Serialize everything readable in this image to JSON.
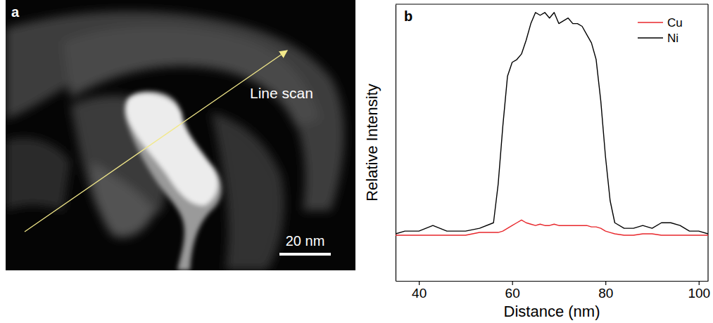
{
  "chart_data": [
    {
      "type": "image",
      "panel": "a",
      "annotations": [
        "Line scan"
      ],
      "scale_bar": "20 nm"
    },
    {
      "type": "line",
      "panel": "b",
      "x_label": "Distance (nm)",
      "y_label": "Relative Intensity",
      "x": [
        35,
        37,
        40,
        43,
        46,
        50,
        53,
        56,
        57,
        58,
        59,
        60,
        61,
        62,
        63,
        64,
        65,
        66,
        67,
        68,
        69,
        70,
        71,
        72,
        73,
        74,
        75,
        76,
        77,
        78,
        79,
        80,
        81,
        82,
        84,
        86,
        88,
        90,
        92,
        94,
        96,
        98,
        100,
        102
      ],
      "series": [
        {
          "name": "Cu",
          "color": "#e8262b",
          "values": [
            0.165,
            0.165,
            0.165,
            0.165,
            0.165,
            0.165,
            0.175,
            0.175,
            0.175,
            0.18,
            0.19,
            0.2,
            0.21,
            0.22,
            0.21,
            0.205,
            0.2,
            0.205,
            0.2,
            0.2,
            0.205,
            0.2,
            0.2,
            0.2,
            0.2,
            0.2,
            0.2,
            0.2,
            0.195,
            0.195,
            0.19,
            0.18,
            0.175,
            0.17,
            0.165,
            0.165,
            0.17,
            0.17,
            0.165,
            0.165,
            0.165,
            0.165,
            0.165,
            0.165
          ]
        },
        {
          "name": "Ni",
          "color": "#000000",
          "values": [
            0.17,
            0.18,
            0.18,
            0.2,
            0.18,
            0.18,
            0.19,
            0.21,
            0.35,
            0.56,
            0.74,
            0.79,
            0.8,
            0.82,
            0.87,
            0.93,
            0.97,
            0.96,
            0.97,
            0.95,
            0.97,
            0.93,
            0.94,
            0.95,
            0.93,
            0.93,
            0.92,
            0.89,
            0.86,
            0.8,
            0.65,
            0.45,
            0.29,
            0.21,
            0.19,
            0.19,
            0.2,
            0.19,
            0.21,
            0.21,
            0.2,
            0.18,
            0.18,
            0.17
          ]
        }
      ],
      "xlim": [
        35,
        102
      ],
      "xticks": [
        40,
        60,
        80,
        100
      ],
      "ylim": [
        0,
        1
      ],
      "tick_labels": "x",
      "legend": "top-right",
      "grid": false
    }
  ]
}
